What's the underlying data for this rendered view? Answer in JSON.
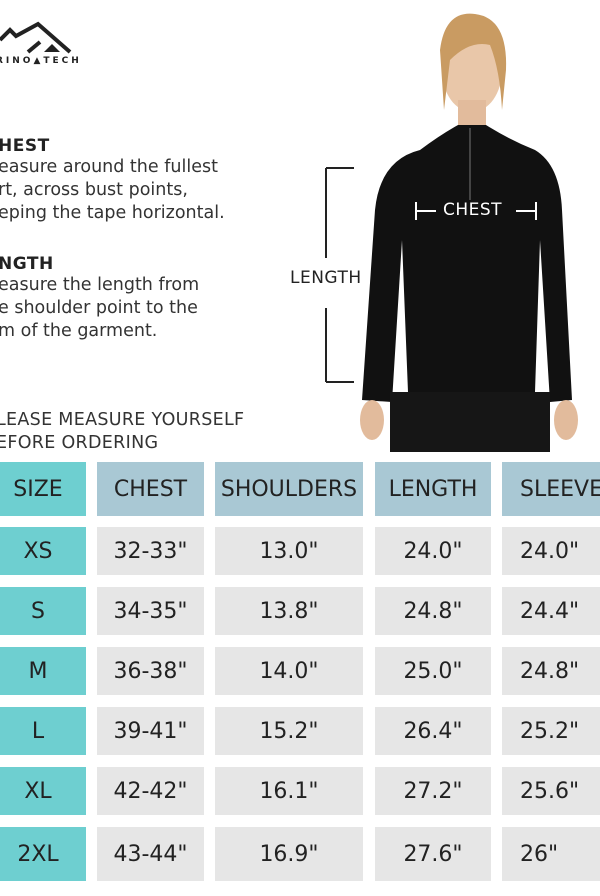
{
  "brand": {
    "logo_text": "MERINO TECH",
    "visible_text": "RINO▲TECH"
  },
  "guide": [
    {
      "title": "HEST",
      "text": [
        "easure around the fullest",
        "rt, across bust points,",
        "eping the tape horizontal."
      ]
    },
    {
      "title": "NGTH",
      "text": [
        "easure the length from",
        "e shoulder point to the",
        "m of the garment."
      ]
    }
  ],
  "notice": [
    "LEASE MEASURE YOURSELF",
    "EFORE ORDERING"
  ],
  "diagram": {
    "chest_label": "CHEST",
    "length_label": "LENGTH"
  },
  "colors": {
    "size_column": "#6ecfd0",
    "header": "#a9c8d4",
    "cell": "#e6e6e6"
  },
  "table": {
    "headers": [
      "SIZE",
      "CHEST",
      "SHOULDERS",
      "LENGTH",
      "SLEEVE"
    ],
    "rows": [
      [
        "XS",
        "32-33\"",
        "13.0\"",
        "24.0\"",
        "24.0\""
      ],
      [
        "S",
        "34-35\"",
        "13.8\"",
        "24.8\"",
        "24.4\""
      ],
      [
        "M",
        "36-38\"",
        "14.0\"",
        "25.0\"",
        "24.8\""
      ],
      [
        "L",
        "39-41\"",
        "15.2\"",
        "26.4\"",
        "25.2\""
      ],
      [
        "XL",
        "42-42\"",
        "16.1\"",
        "27.2\"",
        "25.6\""
      ],
      [
        "2XL",
        "43-44\"",
        "16.9\"",
        "27.6\"",
        "26\""
      ]
    ]
  }
}
